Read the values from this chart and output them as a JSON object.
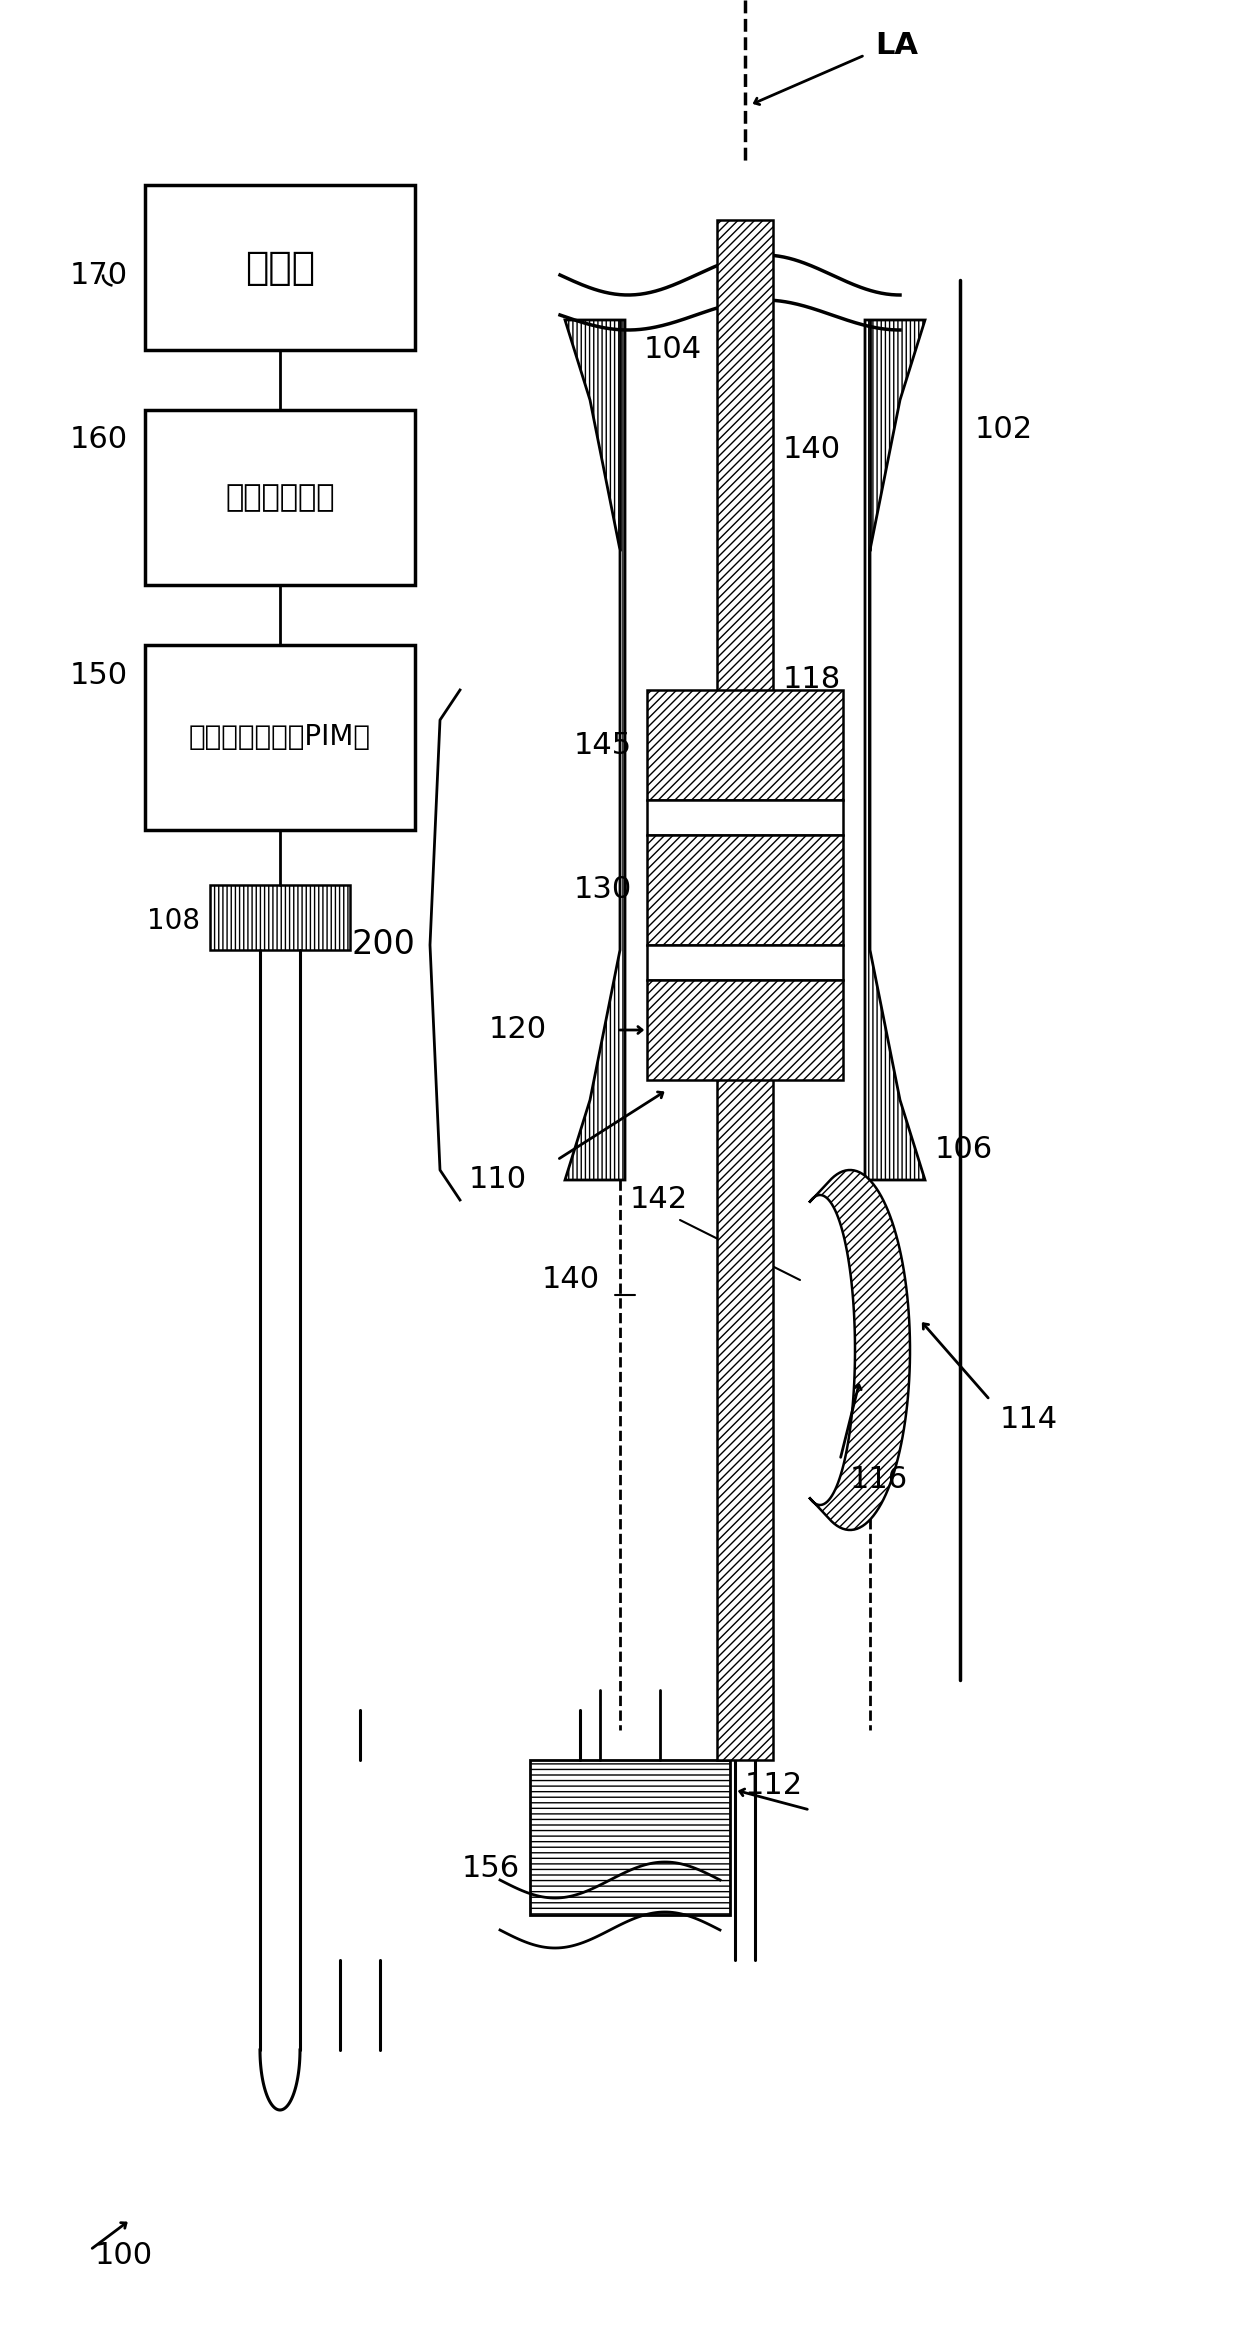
{
  "bg_color": "#ffffff",
  "label_100": "100",
  "label_170": "170",
  "label_160": "160",
  "label_150": "150",
  "label_108": "108",
  "label_156": "156",
  "label_112": "112",
  "label_200": "200",
  "label_LA": "LA",
  "label_102": "102",
  "label_104": "104",
  "label_106": "106",
  "label_110": "110",
  "label_114": "114",
  "label_116": "116",
  "label_118": "118",
  "label_120": "120",
  "label_130": "130",
  "label_140": "140",
  "label_140b": "140",
  "label_142": "142",
  "label_145": "145",
  "text_monitor": "监测器",
  "text_ultrasound": "超声处理系统",
  "text_pim": "患者接口模块（PIM）",
  "line_color": "#000000"
}
